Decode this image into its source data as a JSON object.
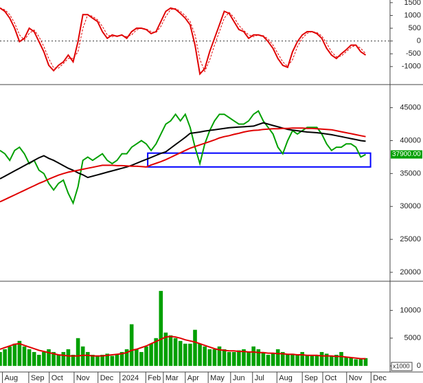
{
  "chart_data": [
    {
      "type": "line",
      "x": [
        0,
        1,
        2,
        3,
        4,
        5,
        6,
        7,
        8,
        9,
        10,
        11,
        12,
        13,
        14,
        15,
        16,
        17,
        18,
        19,
        20,
        21,
        22,
        23,
        24,
        25,
        26,
        27,
        28,
        29,
        30,
        31,
        32,
        33,
        34,
        35,
        36,
        37,
        38,
        39,
        40,
        41,
        42,
        43,
        44,
        45,
        46,
        47,
        48,
        49,
        50,
        51,
        52,
        53,
        54,
        55,
        56,
        57,
        58,
        59,
        60,
        61,
        62,
        63,
        64,
        65,
        66,
        67,
        68,
        69,
        70,
        71,
        72,
        73,
        74,
        75
      ],
      "xlim": [
        0,
        80
      ],
      "ylim": [
        -1650,
        1550
      ],
      "yticks": [
        -1000,
        -500,
        0,
        500,
        1000,
        1500
      ],
      "ref_line": 0,
      "series": [
        {
          "color": "#e00000",
          "values": [
            1290,
            1160,
            895,
            500,
            -26,
            105,
            500,
            368,
            -26,
            -420,
            -950,
            -1160,
            -950,
            -815,
            -550,
            -815,
            -26,
            1030,
            1030,
            895,
            763,
            368,
            105,
            237,
            184,
            237,
            105,
            368,
            500,
            500,
            447,
            290,
            368,
            763,
            1160,
            1290,
            1240,
            1080,
            895,
            630,
            -160,
            -1290,
            -1080,
            -420,
            105,
            630,
            1160,
            1080,
            763,
            447,
            368,
            105,
            237,
            237,
            184,
            -26,
            -290,
            -685,
            -950,
            -1030,
            -420,
            -26,
            237,
            368,
            368,
            290,
            105,
            -290,
            -550,
            -685,
            -500,
            -342,
            -160,
            -160,
            -420,
            -550
          ]
        },
        {
          "color": "#e00000",
          "style": "dashed",
          "values": [
            1300,
            1220,
            1030,
            700,
            240,
            40,
            300,
            430,
            170,
            -220,
            -690,
            -1050,
            -1060,
            -880,
            -680,
            -680,
            -420,
            500,
            1030,
            960,
            830,
            570,
            240,
            170,
            210,
            210,
            170,
            240,
            430,
            500,
            470,
            370,
            330,
            570,
            960,
            1230,
            1270,
            1160,
            990,
            760,
            240,
            -720,
            -1190,
            -750,
            -160,
            370,
            900,
            1120,
            920,
            610,
            410,
            240,
            170,
            240,
            210,
            80,
            -160,
            -490,
            -820,
            -990,
            -730,
            -220,
            110,
            300,
            370,
            330,
            200,
            -90,
            -420,
            -620,
            -590,
            -420,
            -250,
            -160,
            -290,
            -490
          ]
        }
      ]
    },
    {
      "type": "line",
      "x": [
        0,
        1,
        2,
        3,
        4,
        5,
        6,
        7,
        8,
        9,
        10,
        11,
        12,
        13,
        14,
        15,
        16,
        17,
        18,
        19,
        20,
        21,
        22,
        23,
        24,
        25,
        26,
        27,
        28,
        29,
        30,
        31,
        32,
        33,
        34,
        35,
        36,
        37,
        38,
        39,
        40,
        41,
        42,
        43,
        44,
        45,
        46,
        47,
        48,
        49,
        50,
        51,
        52,
        53,
        54,
        55,
        56,
        57,
        58,
        59,
        60,
        61,
        62,
        63,
        64,
        65,
        66,
        67,
        68,
        69,
        70,
        71,
        72,
        73,
        74,
        75
      ],
      "xlim": [
        0,
        80
      ],
      "ylim": [
        18850,
        48300
      ],
      "yticks": [
        20000,
        25000,
        30000,
        35000,
        40000,
        45000
      ],
      "box": {
        "x": [
          30.3,
          76
        ],
        "y": [
          36000,
          38100
        ],
        "color": "#0000ff"
      },
      "last_label": {
        "value": 37900,
        "label": "37900.00"
      },
      "series": [
        {
          "color": "#00a000",
          "values": [
            38500,
            38000,
            37000,
            38500,
            39000,
            38000,
            36500,
            37000,
            35500,
            35000,
            33500,
            32500,
            33500,
            34000,
            32000,
            30500,
            33000,
            37000,
            37500,
            37000,
            37500,
            38000,
            37000,
            36500,
            37000,
            38000,
            38000,
            39000,
            39500,
            40000,
            39500,
            38500,
            39500,
            41000,
            42500,
            43000,
            44000,
            43000,
            44000,
            42000,
            39000,
            36500,
            39500,
            41500,
            43000,
            44000,
            44000,
            43500,
            43000,
            42500,
            42500,
            43000,
            44000,
            44500,
            43000,
            42000,
            41000,
            39000,
            38000,
            40000,
            41500,
            41000,
            41500,
            42000,
            42000,
            42000,
            41000,
            39500,
            38500,
            39000,
            39000,
            39500,
            39500,
            39000,
            37500,
            37900
          ]
        },
        {
          "color": "#000000",
          "values": [
            34200,
            34600,
            35000,
            35400,
            35800,
            36200,
            36600,
            37000,
            37400,
            37700,
            37300,
            37000,
            36600,
            36200,
            35800,
            35500,
            35100,
            34800,
            34400,
            34600,
            34800,
            35000,
            35200,
            35400,
            35600,
            35800,
            36000,
            36250,
            36550,
            36850,
            37150,
            37450,
            37750,
            38050,
            38300,
            38850,
            39400,
            39950,
            40500,
            41100,
            41200,
            41300,
            41450,
            41550,
            41650,
            41750,
            41850,
            41950,
            42000,
            42050,
            42100,
            42150,
            42200,
            42450,
            42700,
            42500,
            42300,
            42100,
            41900,
            41700,
            41600,
            41500,
            41400,
            41300,
            41250,
            41200,
            41100,
            41000,
            40900,
            40750,
            40600,
            40450,
            40300,
            40150,
            40000,
            39900
          ]
        },
        {
          "color": "#e00000",
          "values": [
            30700,
            31050,
            31400,
            31750,
            32100,
            32450,
            32800,
            33150,
            33500,
            33800,
            34150,
            34450,
            34750,
            35000,
            35200,
            35350,
            35500,
            35650,
            35800,
            35950,
            36100,
            36250,
            36250,
            36250,
            36200,
            36200,
            36150,
            36100,
            36100,
            36050,
            36000,
            36300,
            36550,
            36800,
            37100,
            37450,
            37800,
            38150,
            38500,
            38850,
            39100,
            39350,
            39600,
            39850,
            40100,
            40400,
            40600,
            40750,
            40950,
            41100,
            41300,
            41450,
            41550,
            41600,
            41700,
            41750,
            41800,
            41800,
            41850,
            41850,
            41900,
            41900,
            41900,
            41850,
            41850,
            41800,
            41750,
            41700,
            41650,
            41500,
            41350,
            41200,
            41050,
            40900,
            40750,
            40600
          ]
        }
      ]
    },
    {
      "type": "bar",
      "x": [
        0,
        1,
        2,
        3,
        4,
        5,
        6,
        7,
        8,
        9,
        10,
        11,
        12,
        13,
        14,
        15,
        16,
        17,
        18,
        19,
        20,
        21,
        22,
        23,
        24,
        25,
        26,
        27,
        28,
        29,
        30,
        31,
        32,
        33,
        34,
        35,
        36,
        37,
        38,
        39,
        40,
        41,
        42,
        43,
        44,
        45,
        46,
        47,
        48,
        49,
        50,
        51,
        52,
        53,
        54,
        55,
        56,
        57,
        58,
        59,
        60,
        61,
        62,
        63,
        64,
        65,
        66,
        67,
        68,
        69,
        70,
        71,
        72,
        73,
        74,
        75
      ],
      "xlim": [
        0,
        80
      ],
      "ylim": [
        -850,
        15000
      ],
      "yticks": [
        0,
        5000,
        10000
      ],
      "unit_label": "x1000",
      "xticks": [
        {
          "value": 0.5,
          "label": "Aug"
        },
        {
          "value": 5.9,
          "label": "Sep"
        },
        {
          "value": 10.1,
          "label": "Oct"
        },
        {
          "value": 15.2,
          "label": "Nov"
        },
        {
          "value": 20.1,
          "label": "Dec"
        },
        {
          "value": 24.6,
          "label": "2024"
        },
        {
          "value": 29.9,
          "label": "Feb"
        },
        {
          "value": 33.5,
          "label": "Mar"
        },
        {
          "value": 38,
          "label": "Apr"
        },
        {
          "value": 42.7,
          "label": "May"
        },
        {
          "value": 47.3,
          "label": "Jun"
        },
        {
          "value": 51.8,
          "label": "Jul"
        },
        {
          "value": 56.8,
          "label": "Aug"
        },
        {
          "value": 62,
          "label": "Sep"
        },
        {
          "value": 66.2,
          "label": "Oct"
        },
        {
          "value": 71.1,
          "label": "Nov"
        },
        {
          "value": 76.1,
          "label": "Dec"
        }
      ],
      "series": [
        {
          "color": "#00a000",
          "values": [
            2500,
            3000,
            3500,
            4000,
            4500,
            3500,
            3000,
            2500,
            2000,
            2500,
            3000,
            2500,
            2000,
            2500,
            3000,
            2000,
            5000,
            3500,
            2500,
            2000,
            1800,
            2000,
            2200,
            1800,
            2000,
            2500,
            3000,
            7500,
            3000,
            2500,
            3500,
            4000,
            5000,
            13500,
            6000,
            5500,
            5000,
            4500,
            4000,
            4000,
            6500,
            4000,
            3500,
            3000,
            3000,
            3500,
            3000,
            2500,
            2500,
            2800,
            3000,
            2500,
            3500,
            3000,
            2500,
            2000,
            2200,
            3000,
            2500,
            2000,
            2200,
            2000,
            2500,
            2000,
            1800,
            2000,
            2500,
            2200,
            1800,
            2000,
            2500,
            1500,
            1500,
            1200,
            1200,
            1400
          ]
        },
        {
          "color": "#e00000",
          "type": "line",
          "values": [
            3000,
            3300,
            3600,
            3900,
            4000,
            3700,
            3400,
            3100,
            2800,
            2600,
            2400,
            2200,
            2000,
            1900,
            1800,
            1800,
            1800,
            1900,
            1900,
            1800,
            1800,
            1800,
            1900,
            2000,
            2100,
            2200,
            2400,
            2800,
            3000,
            3300,
            3600,
            4000,
            4400,
            4800,
            5200,
            5300,
            5200,
            5000,
            4700,
            4500,
            4300,
            4000,
            3700,
            3400,
            3100,
            2900,
            2800,
            2700,
            2700,
            2600,
            2600,
            2500,
            2500,
            2400,
            2400,
            2300,
            2300,
            2200,
            2200,
            2100,
            2100,
            2000,
            2000,
            1900,
            1900,
            1900,
            1800,
            1800,
            1800,
            1700,
            1700,
            1600,
            1500,
            1400,
            1300,
            1300
          ]
        }
      ]
    }
  ]
}
